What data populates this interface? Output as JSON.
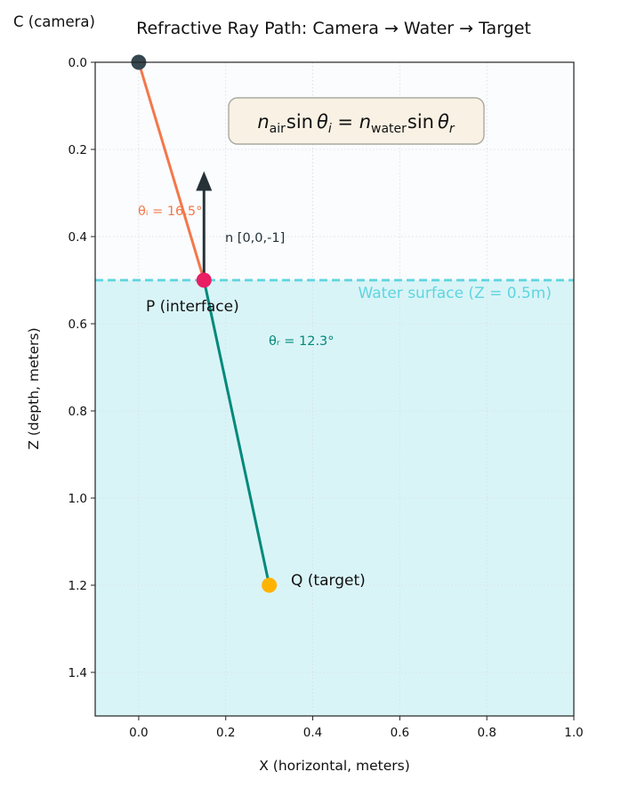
{
  "chart_data": {
    "type": "scatter",
    "title": "Refractive Ray Path: Camera → Water → Target",
    "xlabel": "X (horizontal, meters)",
    "ylabel": "Z (depth, meters)",
    "xlim": [
      -0.1,
      1.0
    ],
    "ylim": [
      1.5,
      0.0
    ],
    "y_inverted": true,
    "grid": true,
    "x_ticks": [
      0.0,
      0.2,
      0.4,
      0.6,
      0.8,
      1.0
    ],
    "x_tick_labels": [
      "0.0",
      "0.2",
      "0.4",
      "0.6",
      "0.8",
      "1.0"
    ],
    "y_ticks": [
      0.0,
      0.2,
      0.4,
      0.6,
      0.8,
      1.0,
      1.2,
      1.4
    ],
    "y_tick_labels": [
      "0.0",
      "0.2",
      "0.4",
      "0.6",
      "0.8",
      "1.0",
      "1.2",
      "1.4"
    ],
    "water_surface_z": 0.5,
    "water_surface_label": "Water surface (Z = 0.5m)",
    "points": [
      {
        "id": "camera",
        "label": "C (camera)",
        "x": 0.0,
        "z": 0.0,
        "color": "#37474f"
      },
      {
        "id": "interface",
        "label": "P (interface)",
        "x": 0.15,
        "z": 0.5,
        "color": "#e91e63"
      },
      {
        "id": "target",
        "label": "Q (target)",
        "x": 0.3,
        "z": 1.2,
        "color": "#ffb300"
      }
    ],
    "segments": [
      {
        "id": "incident-ray",
        "from": [
          0.0,
          0.0
        ],
        "to": [
          0.15,
          0.5
        ],
        "color": "#f4774a"
      },
      {
        "id": "refracted-ray",
        "from": [
          0.15,
          0.5
        ],
        "to": [
          0.3,
          1.2
        ],
        "color": "#00897b"
      }
    ],
    "normal": {
      "label": "n [0,0,-1]",
      "from": [
        0.15,
        0.5
      ],
      "to": [
        0.15,
        0.25
      ],
      "color": "#263238"
    },
    "angles": {
      "incident_label": "θᵢ = 16.5°",
      "refracted_label": "θᵣ = 12.3°"
    },
    "equation": {
      "n1": "n",
      "n1_sub": "air",
      "sin1": "sin",
      "theta1": "θ",
      "theta1_sub": "i",
      "eq": " = ",
      "n2": "n",
      "n2_sub": "water",
      "sin2": "sin",
      "theta2": "θ",
      "theta2_sub": "r"
    },
    "colors": {
      "air_bg": "#fafcfe",
      "water_bg": "#d9f4f7",
      "water_line": "#5fd5df",
      "grid": "#d6dde3",
      "equation_box_fill": "#f8f1e4",
      "equation_box_stroke": "#a9a9a0"
    }
  }
}
